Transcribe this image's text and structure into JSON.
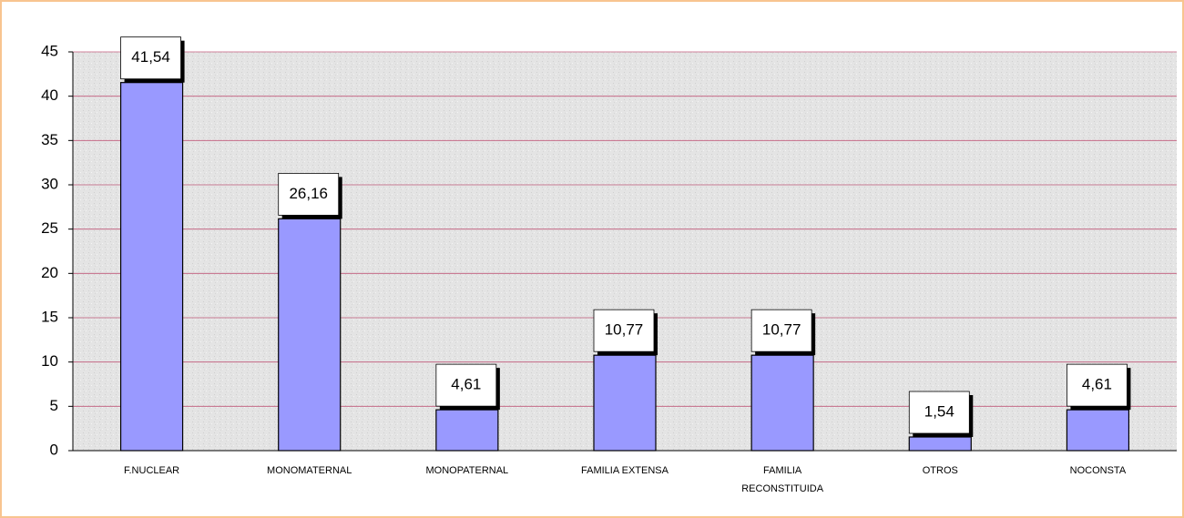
{
  "chart_data": {
    "type": "bar",
    "categories": [
      "F.NUCLEAR",
      "MONOMATERNAL",
      "MONOPATERNAL",
      "FAMILIA EXTENSA",
      "FAMILIA RECONSTITUIDA",
      "OTROS",
      "NOCONSTA"
    ],
    "values": [
      41.54,
      26.16,
      4.61,
      10.77,
      10.77,
      1.54,
      4.61
    ],
    "value_labels": [
      "41,54",
      "26,16",
      "4,61",
      "10,77",
      "10,77",
      "1,54",
      "4,61"
    ],
    "color": "#9999ff",
    "ylim": [
      0,
      45
    ],
    "yticks": [
      0,
      5,
      10,
      15,
      20,
      25,
      30,
      35,
      40,
      45
    ],
    "grid": true
  }
}
